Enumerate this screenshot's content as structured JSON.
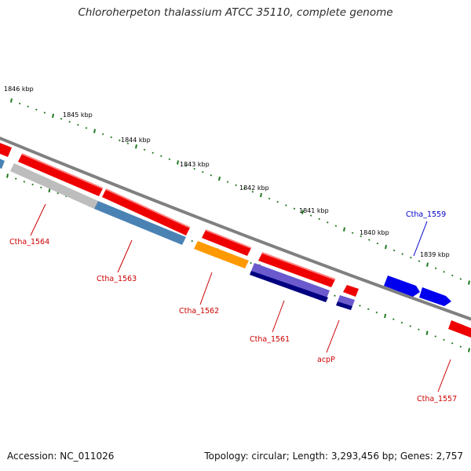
{
  "title": "Chloroherpeton thalassium ATCC 35110, complete genome",
  "footer": {
    "accession": "Accession: NC_011026",
    "topology": "Topology: circular; Length: 3,293,456 bp; Genes: 2,757"
  },
  "colors": {
    "backbone": "#808080",
    "tick": "#1f7a1f",
    "label_red": "#cc0000",
    "label_blue": "#0000cc",
    "gene_red": "#ee0000",
    "gene_grey": "#bdbdbd",
    "gene_steelblue": "#4a82b4",
    "gene_orange": "#ff9900",
    "gene_slate": "#6a5acd",
    "gene_navy": "#000080",
    "gene_blue": "#0000ee"
  },
  "scale_labels": [
    {
      "pos": 1846,
      "text": "1846 kbp"
    },
    {
      "pos": 1845,
      "text": "1845 kbp"
    },
    {
      "pos": 1844,
      "text": "1844 kbp"
    },
    {
      "pos": 1843,
      "text": "1843 kbp"
    },
    {
      "pos": 1842,
      "text": "1842 kbp"
    },
    {
      "pos": 1841,
      "text": "1841 kbp"
    },
    {
      "pos": 1840,
      "text": "1840 kbp"
    },
    {
      "pos": 1839,
      "text": "1839 kbp"
    }
  ],
  "genes": [
    {
      "name": "Ctha_1564",
      "label_color": "label_red"
    },
    {
      "name": "Ctha_1563",
      "label_color": "label_red"
    },
    {
      "name": "Ctha_1562",
      "label_color": "label_red"
    },
    {
      "name": "Ctha_1561",
      "label_color": "label_red"
    },
    {
      "name": "acpP",
      "label_color": "label_red"
    },
    {
      "name": "Ctha_1559",
      "label_color": "label_blue"
    },
    {
      "name": "Ctha_1557",
      "label_color": "label_red"
    }
  ]
}
